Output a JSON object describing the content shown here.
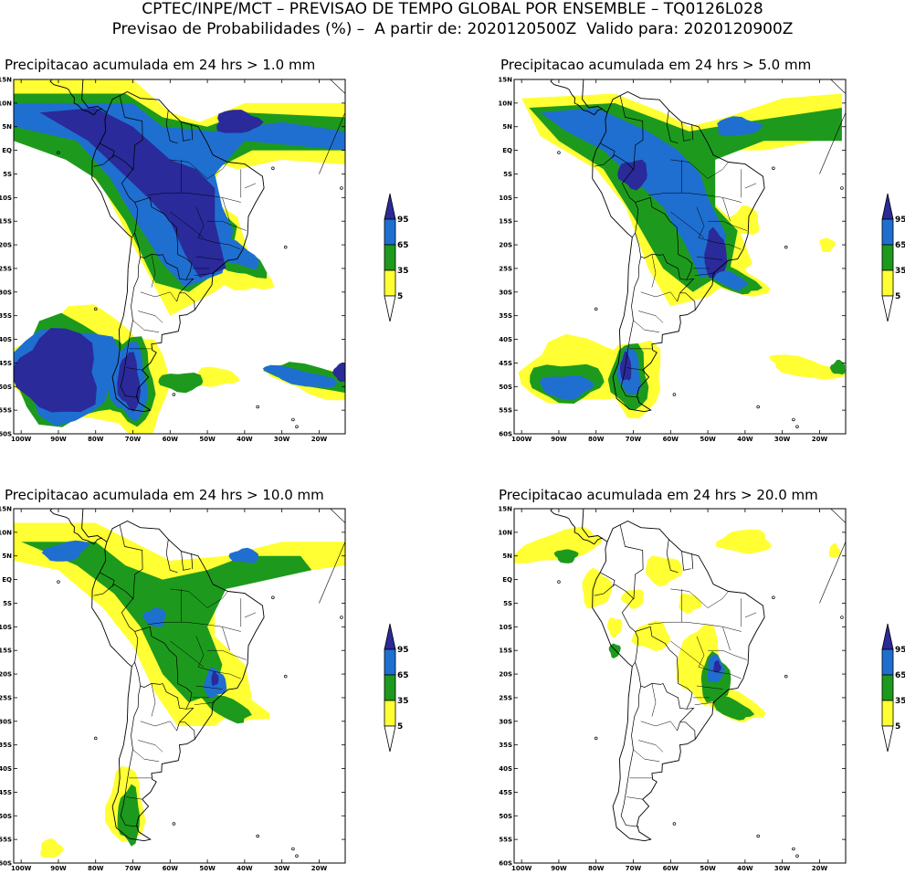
{
  "header": {
    "line1": "CPTEC/INPE/MCT – PREVISAO DE TEMPO GLOBAL POR ENSEMBLE – TQ0126L028",
    "line2": "Previsao de Probabilidades (%) –  A partir de: 2020120500Z  Valido para: 2020120900Z"
  },
  "axes": {
    "lat_labels": [
      "15N",
      "10N",
      "5N",
      "EQ",
      "5S",
      "10S",
      "15S",
      "20S",
      "25S",
      "30S",
      "35S",
      "40S",
      "45S",
      "50S",
      "55S",
      "60S"
    ],
    "lon_labels": [
      "100W",
      "90W",
      "80W",
      "70W",
      "60W",
      "50W",
      "40W",
      "30W",
      "20W"
    ]
  },
  "legend": {
    "labels": [
      "95",
      "65",
      "35",
      "5"
    ],
    "colors": [
      "#2a2a9a",
      "#1f6fd0",
      "#1d9a1d",
      "#ffff33"
    ]
  },
  "panels": [
    {
      "title": "Precipitacao acumulada em 24 hrs > 1.0 mm"
    },
    {
      "title": "Precipitacao acumulada em 24 hrs > 5.0 mm"
    },
    {
      "title": "Precipitacao acumulada em 24 hrs > 10.0 mm"
    },
    {
      "title": "Precipitacao acumulada em 24 hrs > 20.0 mm"
    }
  ]
}
